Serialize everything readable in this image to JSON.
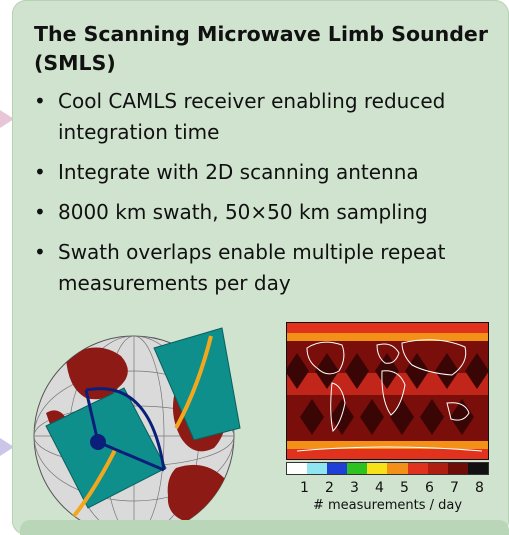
{
  "title": "The Scanning Microwave Limb Sounder (SMLS)",
  "bullets": [
    "Cool CAMLS receiver enabling reduced integration time",
    "Integrate with 2D scanning antenna",
    "8000 km swath, 50×50 km sampling",
    "Swath overlaps enable multiple repeat measurements per day"
  ],
  "colorbar": {
    "labels": [
      "1",
      "2",
      "3",
      "4",
      "5",
      "6",
      "7",
      "8"
    ],
    "caption": "# measurements / day",
    "colors": [
      "#ffffff",
      "#8fe6f0",
      "#1f3fd6",
      "#2dc21f",
      "#f7e21a",
      "#f39018",
      "#e0321c",
      "#b01e12",
      "#6e0c08",
      "#111111"
    ]
  },
  "colors": {
    "panel_bg": "#cfe3cf",
    "swath": "#0f8f8c",
    "orbit": "#f2a81d",
    "land": "#8e1a16",
    "ocean": "#d9d9d9"
  },
  "icons": {
    "left_arrows": "triangle-arrow-icon",
    "globe": "globe-icon",
    "map": "world-coverage-map"
  }
}
